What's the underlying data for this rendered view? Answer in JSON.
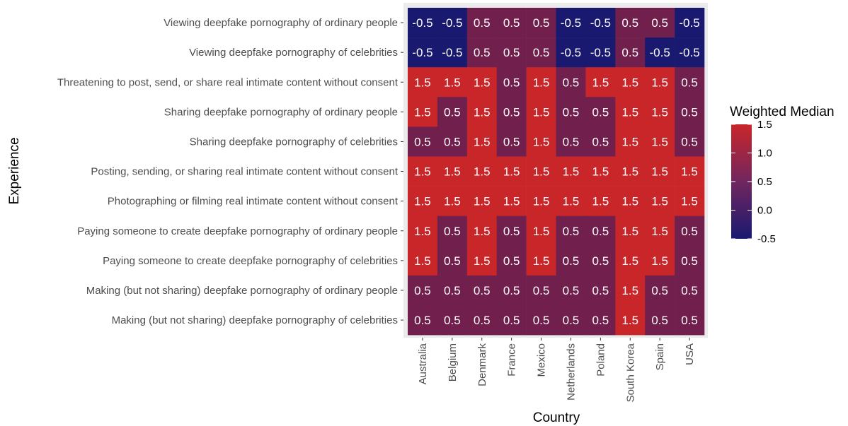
{
  "chart_data": {
    "type": "heatmap",
    "xlabel": "Country",
    "ylabel": "Experience",
    "legend_title": "Weighted Median",
    "legend_position": "right",
    "color_scale": {
      "low": "#191970",
      "high": "#c9262a",
      "min": -0.5,
      "max": 1.5
    },
    "legend_ticks": [
      "1.5",
      "1.0",
      "0.5",
      "0.0",
      "-0.5"
    ],
    "x_categories": [
      "Australia",
      "Belgium",
      "Denmark",
      "France",
      "Mexico",
      "Netherlands",
      "Poland",
      "South Korea",
      "Spain",
      "USA"
    ],
    "y_categories": [
      "Viewing deepfake pornography of ordinary people",
      "Viewing deepfake pornography of celebrities",
      "Threatening to post, send, or share real intimate content without consent",
      "Sharing deepfake pornography of ordinary people",
      "Sharing deepfake pornography of celebrities",
      "Posting, sending, or sharing real intimate content without consent",
      "Photographing or filming real intimate content without consent",
      "Paying someone to create deepfake pornography of ordinary people",
      "Paying someone to create deepfake pornography of celebrities",
      "Making (but not sharing) deepfake pornography of ordinary people",
      "Making (but not sharing) deepfake pornography of celebrities"
    ],
    "values": [
      [
        -0.5,
        -0.5,
        0.5,
        0.5,
        0.5,
        -0.5,
        -0.5,
        0.5,
        0.5,
        -0.5
      ],
      [
        -0.5,
        -0.5,
        0.5,
        0.5,
        0.5,
        -0.5,
        -0.5,
        0.5,
        -0.5,
        -0.5
      ],
      [
        1.5,
        1.5,
        1.5,
        0.5,
        1.5,
        0.5,
        1.5,
        1.5,
        1.5,
        0.5
      ],
      [
        1.5,
        0.5,
        1.5,
        0.5,
        1.5,
        0.5,
        0.5,
        1.5,
        1.5,
        0.5
      ],
      [
        0.5,
        0.5,
        1.5,
        0.5,
        1.5,
        0.5,
        0.5,
        1.5,
        1.5,
        0.5
      ],
      [
        1.5,
        1.5,
        1.5,
        1.5,
        1.5,
        1.5,
        1.5,
        1.5,
        1.5,
        1.5
      ],
      [
        1.5,
        1.5,
        1.5,
        1.5,
        1.5,
        1.5,
        1.5,
        1.5,
        1.5,
        1.5
      ],
      [
        1.5,
        0.5,
        1.5,
        0.5,
        1.5,
        0.5,
        0.5,
        1.5,
        1.5,
        0.5
      ],
      [
        1.5,
        0.5,
        1.5,
        0.5,
        1.5,
        0.5,
        0.5,
        1.5,
        1.5,
        0.5
      ],
      [
        0.5,
        0.5,
        0.5,
        0.5,
        0.5,
        0.5,
        0.5,
        1.5,
        0.5,
        0.5
      ],
      [
        0.5,
        0.5,
        0.5,
        0.5,
        0.5,
        0.5,
        0.5,
        1.5,
        0.5,
        0.5
      ]
    ],
    "grid": false
  }
}
